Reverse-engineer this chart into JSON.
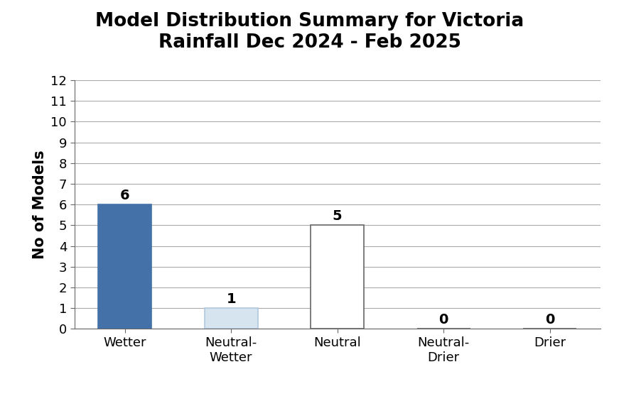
{
  "title": "Model Distribution Summary for Victoria\nRainfall Dec 2024 - Feb 2025",
  "categories": [
    "Wetter",
    "Neutral-\nWetter",
    "Neutral",
    "Neutral-\nDrier",
    "Drier"
  ],
  "values": [
    6,
    1,
    5,
    0,
    0
  ],
  "bar_colors": [
    "#4472a8",
    "#d6e4f0",
    "#ffffff",
    "#ffffff",
    "#ffffff"
  ],
  "bar_edgecolors": [
    "#4472a8",
    "#b0c8e0",
    "#666666",
    "#666666",
    "#666666"
  ],
  "ylabel": "No of Models",
  "ylim": [
    0,
    12
  ],
  "yticks": [
    0,
    1,
    2,
    3,
    4,
    5,
    6,
    7,
    8,
    9,
    10,
    11,
    12
  ],
  "title_fontsize": 19,
  "axis_label_fontsize": 15,
  "tick_fontsize": 13,
  "value_label_fontsize": 14,
  "background_color": "#ffffff",
  "grid_color": "#aaaaaa"
}
